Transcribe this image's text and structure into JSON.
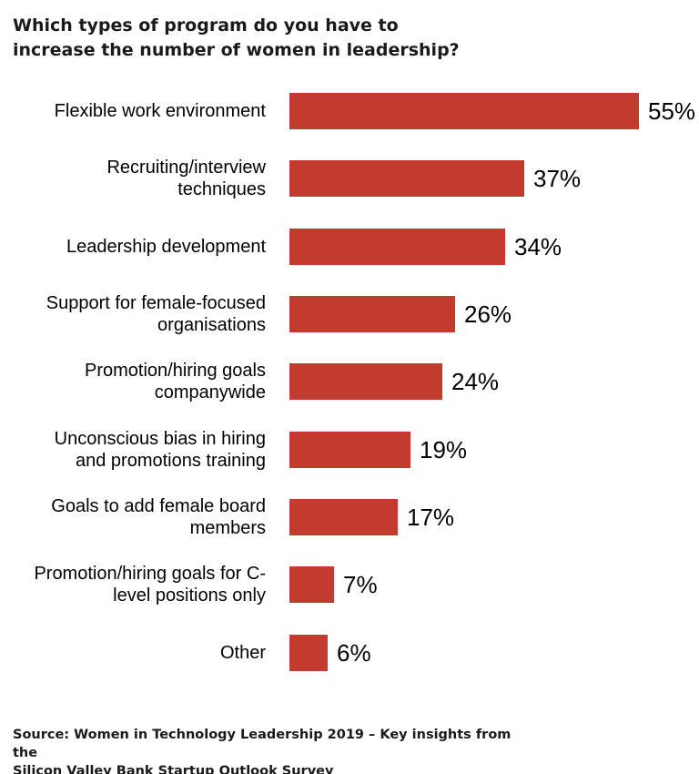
{
  "title": "Which types of program do you have to\nincrease the number of women in leadership?",
  "source": "Source: Women in Technology Leadership 2019 – Key insights from the\nSilicon Valley Bank Startup Outlook Survey",
  "chart_data": {
    "type": "bar",
    "orientation": "horizontal",
    "title": "Which types of program do you have to increase the number of women in leadership?",
    "categories": [
      "Flexible work environment",
      "Recruiting/interview techniques",
      "Leadership development",
      "Support for female-focused organisations",
      "Promotion/hiring goals companywide",
      "Unconscious bias in hiring and promotions training",
      "Goals to add female board members",
      "Promotion/hiring goals for C-level positions only",
      "Other"
    ],
    "values": [
      55,
      37,
      34,
      26,
      24,
      19,
      17,
      7,
      6
    ],
    "value_suffix": "%",
    "unit": "percent",
    "xlim": [
      0,
      60
    ],
    "grid": false,
    "legend": false,
    "bar_color": "#c23b2e",
    "text_color": "#000000",
    "source": "Source: Women in Technology Leadership 2019 – Key insights from the Silicon Valley Bank Startup Outlook Survey"
  }
}
